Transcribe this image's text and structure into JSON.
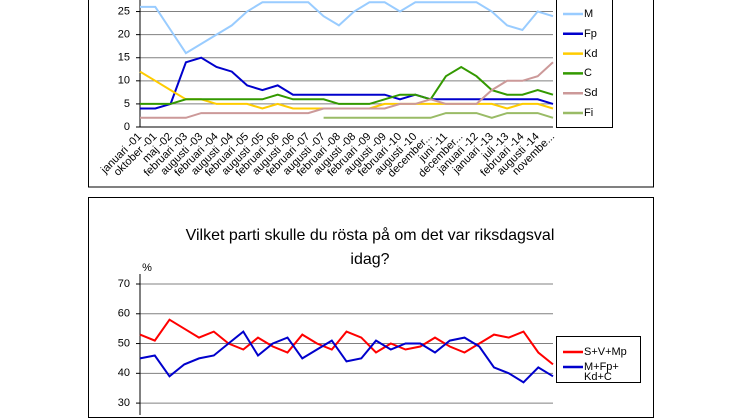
{
  "charts": [
    {
      "type": "line",
      "categories": [
        "januari -01",
        "oktober -01",
        "maj -02",
        "februari -03",
        "augusti -03",
        "februari -04",
        "augusti -04",
        "februari -05",
        "augusti -05",
        "februari -06",
        "augusti -06",
        "februari -07",
        "augusti -07",
        "februari -08",
        "augusti -08",
        "februari -09",
        "augusti -09",
        "februari -10",
        "augusti -10",
        "december...",
        "juni -11",
        "december...",
        "januari -12",
        "januari -13",
        "juli -13",
        "februari -14",
        "augusti -14",
        "novembe..."
      ],
      "ylim": [
        0,
        27.5
      ],
      "yticks": [
        0,
        5,
        10,
        15,
        20,
        25
      ],
      "grid": true,
      "series": [
        {
          "name": "M",
          "color": "#99ccff",
          "values": [
            26,
            26,
            21,
            16,
            18,
            20,
            22,
            25,
            27,
            27,
            27,
            27,
            24,
            22,
            25,
            27,
            27,
            25,
            27,
            27,
            27,
            27,
            27,
            25,
            22,
            21,
            25,
            24
          ]
        },
        {
          "name": "Fp",
          "color": "#0000cc",
          "values": [
            4,
            4,
            5,
            14,
            15,
            13,
            12,
            9,
            8,
            9,
            7,
            7,
            7,
            7,
            7,
            7,
            7,
            6,
            7,
            6,
            6,
            6,
            6,
            6,
            6,
            6,
            6,
            5
          ]
        },
        {
          "name": "Kd",
          "color": "#ffcc00",
          "values": [
            12,
            10,
            8,
            6,
            6,
            5,
            5,
            5,
            4,
            5,
            4,
            4,
            4,
            4,
            4,
            4,
            5,
            5,
            5,
            5,
            5,
            5,
            5,
            5,
            4,
            5,
            5,
            4
          ]
        },
        {
          "name": "C",
          "color": "#339900",
          "values": [
            5,
            5,
            5,
            6,
            6,
            6,
            6,
            6,
            6,
            7,
            6,
            6,
            6,
            5,
            5,
            5,
            6,
            7,
            7,
            6,
            11,
            13,
            11,
            8,
            7,
            7,
            8,
            7
          ]
        },
        {
          "name": "Sd",
          "color": "#cc9999",
          "values": [
            2,
            2,
            2,
            2,
            3,
            3,
            3,
            3,
            3,
            3,
            3,
            3,
            4,
            4,
            4,
            4,
            4,
            5,
            5,
            6,
            5,
            5,
            5,
            8,
            10,
            10,
            11,
            14
          ]
        },
        {
          "name": "Fi",
          "color": "#99bb66",
          "values": [
            null,
            null,
            null,
            null,
            null,
            null,
            null,
            null,
            null,
            null,
            null,
            null,
            2,
            2,
            2,
            2,
            2,
            2,
            2,
            2,
            3,
            3,
            3,
            2,
            3,
            3,
            3,
            2
          ]
        }
      ]
    },
    {
      "type": "line",
      "title": "Vilket parti skulle du rösta på om det var riksdagsval idag?",
      "y_label": "%",
      "ylim": [
        26,
        70
      ],
      "yticks": [
        30,
        40,
        50,
        60,
        70
      ],
      "grid": true,
      "series": [
        {
          "name": "S+V+Mp",
          "color": "#ff0000",
          "values": [
            53,
            51,
            58,
            55,
            52,
            54,
            50,
            48,
            52,
            49,
            47,
            53,
            50,
            48,
            54,
            52,
            47,
            50,
            48,
            49,
            52,
            49,
            47,
            50,
            53,
            52,
            54,
            47,
            43
          ]
        },
        {
          "name": "M+Fp+\nKd+C",
          "color": "#0000cc",
          "values": [
            45,
            46,
            39,
            43,
            45,
            46,
            50,
            54,
            46,
            50,
            52,
            45,
            48,
            51,
            44,
            45,
            51,
            48,
            50,
            50,
            47,
            51,
            52,
            49,
            42,
            40,
            37,
            42,
            39
          ]
        }
      ]
    }
  ]
}
